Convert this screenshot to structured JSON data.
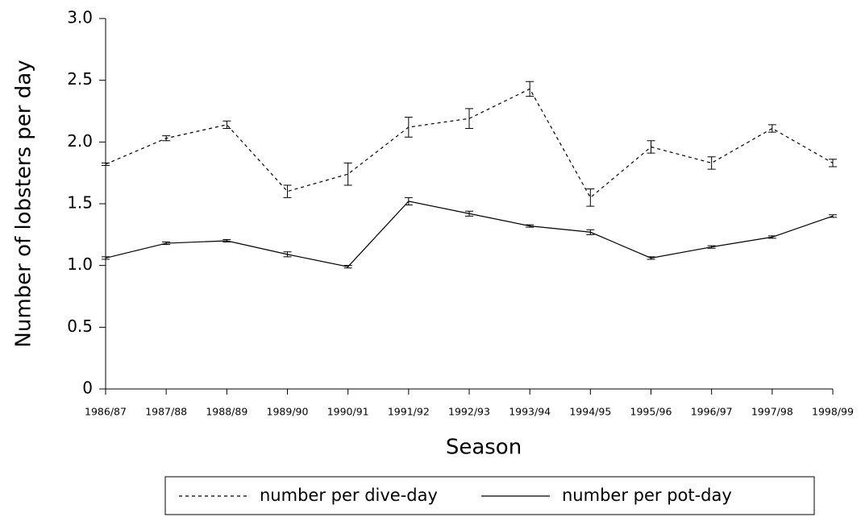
{
  "chart_data": {
    "type": "line",
    "xlabel": "Season",
    "ylabel": "Number of lobsters per day",
    "categories": [
      "1986/87",
      "1987/88",
      "1988/89",
      "1989/90",
      "1990/91",
      "1991/92",
      "1992/93",
      "1993/94",
      "1994/95",
      "1995/96",
      "1996/97",
      "1997/98",
      "1998/99"
    ],
    "series": [
      {
        "name": "number per dive-day",
        "color": "#000000",
        "line_style": "dashed",
        "values": [
          1.82,
          2.03,
          2.14,
          1.6,
          1.74,
          2.12,
          2.19,
          2.43,
          1.55,
          1.96,
          1.83,
          2.11,
          1.83
        ],
        "errors": [
          0.01,
          0.02,
          0.03,
          0.05,
          0.09,
          0.08,
          0.08,
          0.06,
          0.07,
          0.05,
          0.05,
          0.03,
          0.03
        ]
      },
      {
        "name": "number per pot-day",
        "color": "#000000",
        "line_style": "solid",
        "values": [
          1.06,
          1.18,
          1.2,
          1.09,
          0.99,
          1.52,
          1.42,
          1.32,
          1.27,
          1.06,
          1.15,
          1.23,
          1.4
        ],
        "errors": [
          0.01,
          0.01,
          0.01,
          0.02,
          0.01,
          0.03,
          0.02,
          0.01,
          0.02,
          0.01,
          0.01,
          0.01,
          0.01
        ]
      }
    ],
    "ylim": [
      0,
      3
    ],
    "yticks": [
      0,
      0.5,
      {
        "value": 1,
        "label": "1.0"
      },
      1.5,
      {
        "value": 2,
        "label": "2.0"
      },
      2.5,
      {
        "value": 3,
        "label": "3.0"
      }
    ],
    "grid": false,
    "legend": "bottom"
  }
}
